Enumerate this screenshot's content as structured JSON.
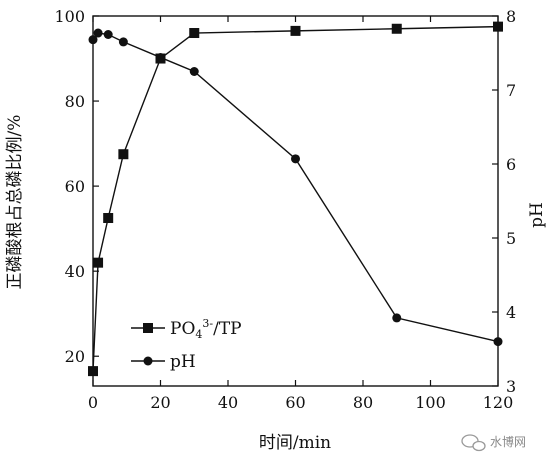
{
  "chart_data": {
    "type": "line",
    "xlabel": "时间/min",
    "ylabel_left": "正磷酸根占总磷比例/%",
    "ylabel_right": "pH",
    "xlim": [
      0,
      120
    ],
    "xticks": [
      0,
      20,
      40,
      60,
      80,
      100,
      120
    ],
    "ylim_left": [
      13,
      100
    ],
    "yticks_left": [
      20,
      40,
      60,
      80,
      100
    ],
    "ylim_right": [
      3,
      8
    ],
    "yticks_right": [
      3,
      4,
      5,
      6,
      7,
      8
    ],
    "grid": false,
    "legend_position": "bottom-left",
    "series": [
      {
        "name": "PO4 3-/TP",
        "axis": "left",
        "marker": "square",
        "x": [
          0,
          1.5,
          4.5,
          9,
          20,
          30,
          60,
          90,
          120
        ],
        "y": [
          16.5,
          42,
          52.5,
          67.5,
          90,
          96,
          96.5,
          97,
          97.5
        ]
      },
      {
        "name": "pH",
        "axis": "right",
        "marker": "circle",
        "x": [
          0,
          1.5,
          4.5,
          9,
          20,
          30,
          60,
          90,
          120
        ],
        "y": [
          7.68,
          7.77,
          7.75,
          7.65,
          7.44,
          7.25,
          6.07,
          3.92,
          3.6
        ]
      }
    ]
  },
  "legend": {
    "po4_main": "PO",
    "po4_sub": "4",
    "po4_sup": "3-",
    "po4_rest": "/TP",
    "ph": "pH"
  },
  "watermark": {
    "icon": "wechat-icon",
    "text": "水博网"
  }
}
